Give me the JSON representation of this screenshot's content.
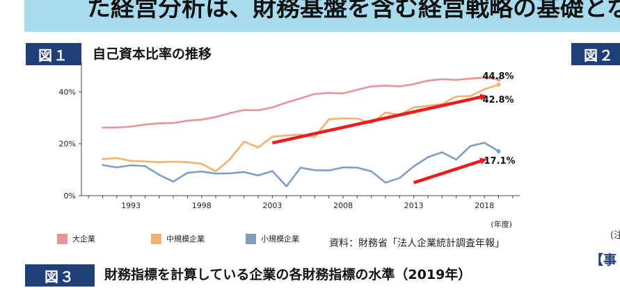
{
  "banner": {
    "text": "た経営分析は、財務基盤を含む経営戦略の基礎とな"
  },
  "figure1": {
    "badge": "図１",
    "title": "自己資本比率の推移"
  },
  "figure2": {
    "badge": "図２",
    "partial_bracket": "【事",
    "partial_side_note": "(注",
    "partial_right": "【"
  },
  "figure3": {
    "badge": "図３",
    "title": "財務指標を計算している企業の各財務指標の水準（2019年）"
  },
  "source": "資料：財務省「法人企業統計調査年報」",
  "colors": {
    "large": "#e89397",
    "medium": "#f2b16f",
    "small": "#7f9dc0",
    "arrow": "#ee1c1c",
    "badge": "#1f3f7a",
    "banner": "#a9dbee"
  },
  "chart_data": {
    "type": "line",
    "xlabel": "(年度)",
    "ylabel": "",
    "x_tick_labels": [
      "1993",
      "1998",
      "2003",
      "2008",
      "2013",
      "2018"
    ],
    "y_tick_labels": [
      "0%",
      "20%",
      "40%"
    ],
    "ylim": [
      0,
      50
    ],
    "xlim": [
      1989.5,
      2020.5
    ],
    "grid": false,
    "legend_position": "bottom",
    "x": [
      1991,
      1992,
      1993,
      1994,
      1995,
      1996,
      1997,
      1998,
      1999,
      2000,
      2001,
      2002,
      2003,
      2004,
      2005,
      2006,
      2007,
      2008,
      2009,
      2010,
      2011,
      2012,
      2013,
      2014,
      2015,
      2016,
      2017,
      2018,
      2019
    ],
    "series": [
      {
        "name": "大企業",
        "key": "large",
        "values": [
          26.2,
          26.3,
          26.6,
          27.4,
          27.9,
          28.0,
          28.9,
          29.3,
          30.3,
          31.8,
          33.0,
          32.9,
          34.0,
          35.9,
          37.5,
          39.2,
          39.6,
          39.4,
          40.8,
          42.1,
          42.4,
          42.1,
          43.0,
          44.3,
          44.9,
          44.6,
          45.1,
          45.5,
          44.8
        ],
        "end_label": "44.8%"
      },
      {
        "name": "中規模企業",
        "key": "medium",
        "values": [
          14.1,
          14.5,
          13.4,
          13.2,
          12.9,
          13.1,
          12.9,
          12.3,
          9.4,
          14.0,
          20.8,
          18.6,
          22.7,
          23.2,
          23.5,
          22.6,
          29.4,
          29.8,
          29.7,
          27.9,
          32.0,
          31.2,
          34.0,
          34.6,
          35.3,
          38.2,
          38.4,
          41.0,
          42.8
        ],
        "end_label": "42.8%"
      },
      {
        "name": "小規模企業",
        "key": "small",
        "values": [
          11.8,
          10.9,
          11.7,
          11.4,
          8.0,
          5.4,
          8.8,
          9.3,
          8.5,
          8.6,
          9.1,
          7.8,
          9.5,
          3.6,
          10.8,
          9.8,
          9.7,
          10.9,
          10.8,
          9.4,
          5.0,
          6.8,
          11.3,
          14.8,
          16.7,
          13.9,
          19.1,
          20.4,
          17.1
        ],
        "end_label": "17.1%"
      }
    ],
    "arrows": [
      {
        "from": [
          2003,
          20.3
        ],
        "to": [
          2018,
          38.3
        ]
      },
      {
        "from": [
          2013,
          5.0
        ],
        "to": [
          2018,
          13.8
        ]
      }
    ]
  }
}
